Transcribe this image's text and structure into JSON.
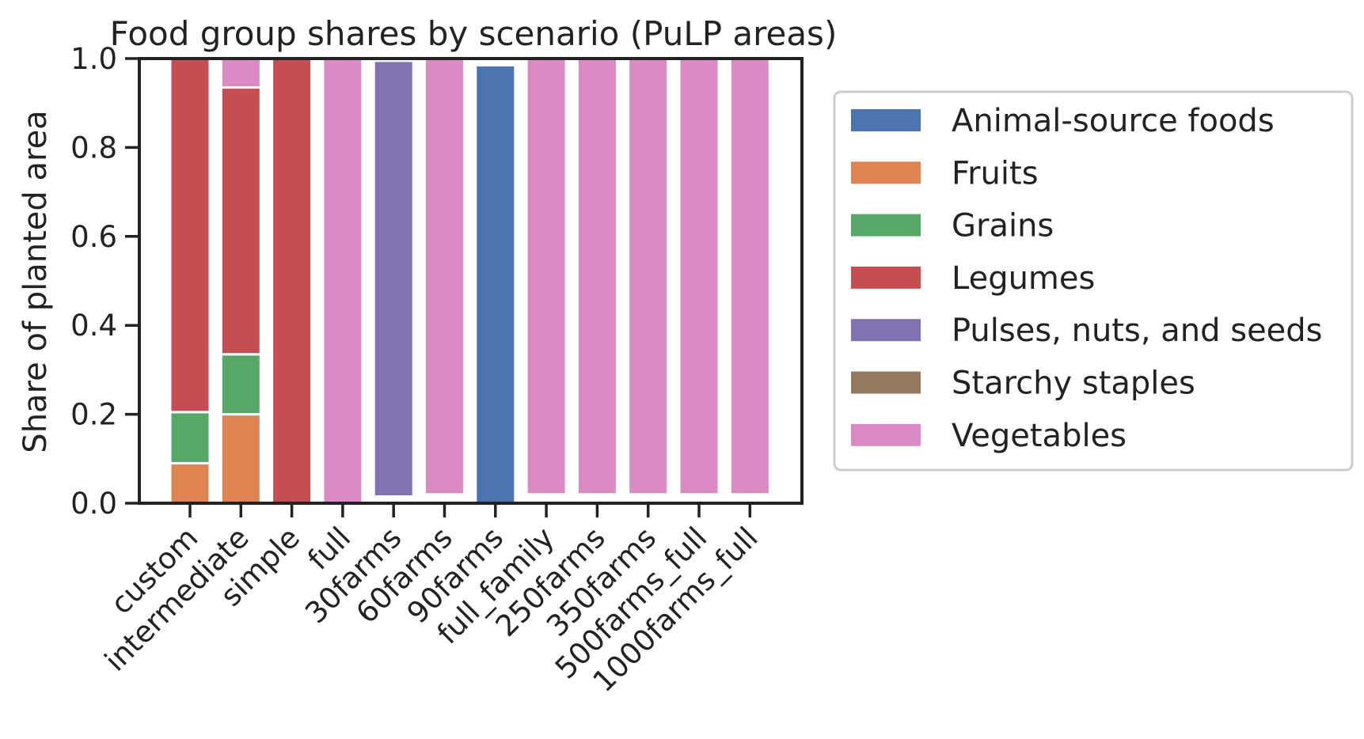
{
  "chart_data": {
    "type": "bar",
    "stacked": true,
    "title": "Food group shares by scenario (PuLP areas)",
    "xlabel": "",
    "ylabel": "Share of planted area",
    "ylim": [
      0,
      1.0
    ],
    "yticks": [
      0.0,
      0.2,
      0.4,
      0.6,
      0.8,
      1.0
    ],
    "ytick_labels": [
      "0.0",
      "0.2",
      "0.4",
      "0.6",
      "0.8",
      "1.0"
    ],
    "legend_position": "outside-right",
    "categories": [
      "custom",
      "intermediate",
      "simple",
      "full",
      "30farms",
      "60farms",
      "90farms",
      "full_family",
      "250farms",
      "350farms",
      "500farms_full",
      "1000farms_full"
    ],
    "series": [
      {
        "name": "Animal-source foods",
        "color": "#4c72b0",
        "values": [
          0,
          0,
          0,
          0,
          0,
          0,
          0.985,
          0,
          0,
          0,
          0,
          0
        ]
      },
      {
        "name": "Fruits",
        "color": "#dd8452",
        "values": [
          0.09,
          0.2,
          0,
          0,
          0,
          0,
          0,
          0,
          0,
          0,
          0,
          0
        ]
      },
      {
        "name": "Grains",
        "color": "#55a868",
        "values": [
          0.115,
          0.135,
          0,
          0,
          0,
          0,
          0,
          0,
          0,
          0,
          0,
          0
        ]
      },
      {
        "name": "Legumes",
        "color": "#c44e52",
        "values": [
          0.795,
          0.6,
          1.0,
          0,
          0,
          0,
          0,
          0,
          0,
          0,
          0,
          0
        ]
      },
      {
        "name": "Pulses, nuts, and seeds",
        "color": "#8172b3",
        "values": [
          0,
          0,
          0,
          0,
          0.98,
          0,
          0,
          0,
          0,
          0,
          0,
          0
        ]
      },
      {
        "name": "Starchy staples",
        "color": "#937860",
        "values": [
          0,
          0,
          0,
          0,
          0,
          0,
          0,
          0,
          0,
          0,
          0,
          0
        ]
      },
      {
        "name": "Vegetables",
        "color": "#da8bc3",
        "values": [
          0,
          0.065,
          0,
          1.0,
          0,
          0.98,
          0,
          0.98,
          0.98,
          0.98,
          0.98,
          0.98
        ]
      }
    ],
    "bar_offsets": [
      0,
      0,
      0,
      0,
      0.015,
      0.02,
      0,
      0.02,
      0.02,
      0.02,
      0.02,
      0.02
    ]
  }
}
